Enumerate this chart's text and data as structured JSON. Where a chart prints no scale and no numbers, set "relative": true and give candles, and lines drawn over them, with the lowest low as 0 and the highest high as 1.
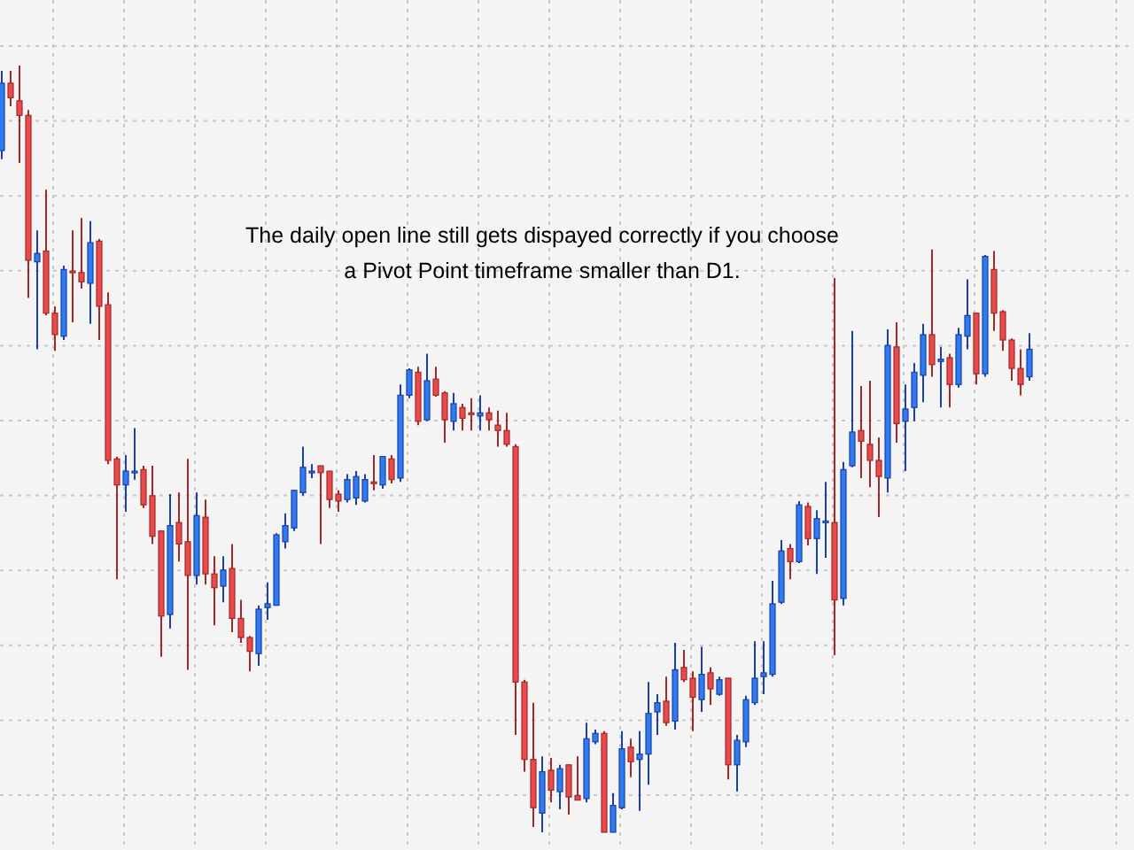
{
  "chart_data": {
    "type": "candlestick",
    "relative": true,
    "grid": true,
    "annotations": [
      "The daily open line still gets dispayed correctly if you choose\na Pivot Point timeframe smaller than D1."
    ],
    "categories": [
      null,
      null,
      null,
      null,
      null,
      null,
      null,
      null,
      null,
      null,
      null,
      null,
      null,
      null,
      null,
      null,
      null,
      null,
      null,
      null,
      null,
      null,
      null,
      null,
      null,
      null,
      null,
      null,
      null,
      null,
      null,
      null,
      null,
      null,
      null,
      null,
      null,
      null,
      null,
      null,
      null,
      null,
      null,
      null,
      null,
      null,
      null,
      null,
      null,
      null,
      null,
      null,
      null,
      null,
      null,
      null,
      null,
      null,
      null,
      null,
      null,
      null,
      null,
      null,
      null,
      null,
      null,
      null,
      null,
      null,
      null,
      null,
      null,
      null,
      null,
      null,
      null,
      null,
      null,
      null,
      null,
      null,
      null,
      null,
      null,
      null,
      null,
      null,
      null,
      null,
      null,
      null,
      null,
      null,
      null,
      null,
      null,
      null,
      null,
      null,
      null,
      null,
      null,
      null,
      null,
      null,
      null,
      null,
      null,
      null,
      null,
      null,
      null,
      null,
      null,
      null,
      null
    ],
    "ohlc": [
      [
        0.889,
        0.993,
        0.878,
        0.977
      ],
      [
        0.977,
        0.993,
        0.947,
        0.958
      ],
      [
        0.954,
        1,
        0.873,
        0.935
      ],
      [
        0.935,
        0.942,
        0.697,
        0.746
      ],
      [
        0.744,
        0.785,
        0.63,
        0.755
      ],
      [
        0.758,
        0.838,
        0.674,
        0.677
      ],
      [
        0.677,
        0.686,
        0.628,
        0.649
      ],
      [
        0.647,
        0.739,
        0.642,
        0.734
      ],
      [
        0.732,
        0.785,
        0.665,
        0.73
      ],
      [
        0.73,
        0.801,
        0.709,
        0.718
      ],
      [
        0.716,
        0.797,
        0.663,
        0.769
      ],
      [
        0.771,
        0.774,
        0.642,
        0.686
      ],
      [
        0.688,
        0.704,
        0.48,
        0.485
      ],
      [
        0.487,
        0.49,
        0.33,
        0.453
      ],
      [
        0.453,
        0.492,
        0.418,
        0.471
      ],
      [
        0.469,
        0.527,
        0.46,
        0.471
      ],
      [
        0.473,
        0.478,
        0.423,
        0.427
      ],
      [
        0.439,
        0.478,
        0.376,
        0.386
      ],
      [
        0.393,
        0.393,
        0.229,
        0.282
      ],
      [
        0.284,
        0.441,
        0.266,
        0.4
      ],
      [
        0.404,
        0.443,
        0.353,
        0.376
      ],
      [
        0.379,
        0.487,
        0.212,
        0.335
      ],
      [
        0.335,
        0.443,
        0.323,
        0.413
      ],
      [
        0.411,
        0.434,
        0.323,
        0.337
      ],
      [
        0.337,
        0.36,
        0.27,
        0.319
      ],
      [
        0.321,
        0.36,
        0.3,
        0.342
      ],
      [
        0.344,
        0.376,
        0.261,
        0.279
      ],
      [
        0.279,
        0.303,
        0.247,
        0.254
      ],
      [
        0.254,
        0.256,
        0.21,
        0.236
      ],
      [
        0.233,
        0.296,
        0.217,
        0.291
      ],
      [
        0.293,
        0.326,
        0.277,
        0.298
      ],
      [
        0.296,
        0.39,
        0.296,
        0.388
      ],
      [
        0.379,
        0.416,
        0.37,
        0.4
      ],
      [
        0.397,
        0.446,
        0.393,
        0.446
      ],
      [
        0.443,
        0.503,
        0.439,
        0.476
      ],
      [
        0.471,
        0.48,
        0.462,
        0.471
      ],
      [
        0.478,
        0.478,
        0.376,
        0.469
      ],
      [
        0.471,
        0.471,
        0.423,
        0.434
      ],
      [
        0.441,
        0.446,
        0.418,
        0.432
      ],
      [
        0.434,
        0.467,
        0.43,
        0.46
      ],
      [
        0.436,
        0.471,
        0.427,
        0.464
      ],
      [
        0.432,
        0.467,
        0.43,
        0.46
      ],
      [
        0.457,
        0.492,
        0.446,
        0.455
      ],
      [
        0.453,
        0.49,
        0.448,
        0.49
      ],
      [
        0.487,
        0.492,
        0.455,
        0.46
      ],
      [
        0.462,
        0.584,
        0.457,
        0.57
      ],
      [
        0.57,
        0.605,
        0.566,
        0.603
      ],
      [
        0.6,
        0.607,
        0.531,
        0.536
      ],
      [
        0.538,
        0.624,
        0.536,
        0.589
      ],
      [
        0.591,
        0.607,
        0.568,
        0.57
      ],
      [
        0.573,
        0.575,
        0.508,
        0.538
      ],
      [
        0.536,
        0.573,
        0.524,
        0.559
      ],
      [
        0.554,
        0.559,
        0.524,
        0.54
      ],
      [
        0.547,
        0.566,
        0.524,
        0.545
      ],
      [
        0.543,
        0.57,
        0.524,
        0.547
      ],
      [
        0.547,
        0.554,
        0.524,
        0.538
      ],
      [
        0.531,
        0.55,
        0.503,
        0.524
      ],
      [
        0.524,
        0.547,
        0.503,
        0.506
      ],
      [
        0.503,
        0.506,
        0.127,
        0.196
      ],
      [
        0.196,
        0.199,
        0.079,
        0.095
      ],
      [
        0.095,
        0.169,
        0.007,
        0.032
      ],
      [
        0.025,
        0.099,
        0,
        0.079
      ],
      [
        0.081,
        0.097,
        0.039,
        0.055
      ],
      [
        0.053,
        0.088,
        0.03,
        0.083
      ],
      [
        0.088,
        0.088,
        0.023,
        0.046
      ],
      [
        0.048,
        0.099,
        0.042,
        0.042
      ],
      [
        0.044,
        0.143,
        0.039,
        0.122
      ],
      [
        0.118,
        0.134,
        0.115,
        0.129
      ],
      [
        0.129,
        0.132,
        0,
        0
      ],
      [
        0,
        0.051,
        0,
        0.035
      ],
      [
        0.032,
        0.132,
        0.03,
        0.109
      ],
      [
        0.111,
        0.122,
        0.072,
        0.092
      ],
      [
        0.095,
        0.132,
        0.028,
        0.102
      ],
      [
        0.102,
        0.196,
        0.062,
        0.155
      ],
      [
        0.157,
        0.18,
        0.127,
        0.169
      ],
      [
        0.171,
        0.203,
        0.139,
        0.143
      ],
      [
        0.145,
        0.247,
        0.134,
        0.212
      ],
      [
        0.215,
        0.238,
        0.196,
        0.199
      ],
      [
        0.201,
        0.21,
        0.132,
        0.176
      ],
      [
        0.173,
        0.242,
        0.157,
        0.206
      ],
      [
        0.208,
        0.215,
        0.166,
        0.187
      ],
      [
        0.18,
        0.203,
        0.178,
        0.199
      ],
      [
        0.201,
        0.201,
        0.069,
        0.088
      ],
      [
        0.088,
        0.127,
        0.053,
        0.12
      ],
      [
        0.118,
        0.178,
        0.111,
        0.173
      ],
      [
        0.169,
        0.249,
        0.166,
        0.201
      ],
      [
        0.203,
        0.249,
        0.18,
        0.208
      ],
      [
        0.206,
        0.328,
        0.203,
        0.298
      ],
      [
        0.3,
        0.381,
        0.298,
        0.367
      ],
      [
        0.37,
        0.376,
        0.33,
        0.353
      ],
      [
        0.353,
        0.432,
        0.351,
        0.427
      ],
      [
        0.425,
        0.43,
        0.374,
        0.383
      ],
      [
        0.383,
        0.42,
        0.337,
        0.409
      ],
      [
        0.406,
        0.457,
        0.358,
        0.406
      ],
      [
        0.404,
        0.723,
        0.231,
        0.303
      ],
      [
        0.305,
        0.483,
        0.296,
        0.473
      ],
      [
        0.478,
        0.654,
        0.476,
        0.522
      ],
      [
        0.524,
        0.582,
        0.462,
        0.51
      ],
      [
        0.506,
        0.589,
        0.45,
        0.485
      ],
      [
        0.485,
        0.515,
        0.411,
        0.464
      ],
      [
        0.462,
        0.656,
        0.443,
        0.635
      ],
      [
        0.633,
        0.665,
        0.508,
        0.533
      ],
      [
        0.536,
        0.584,
        0.471,
        0.552
      ],
      [
        0.554,
        0.612,
        0.536,
        0.6
      ],
      [
        0.596,
        0.663,
        0.561,
        0.649
      ],
      [
        0.649,
        0.76,
        0.594,
        0.61
      ],
      [
        0.614,
        0.633,
        0.554,
        0.617
      ],
      [
        0.619,
        0.624,
        0.554,
        0.584
      ],
      [
        0.584,
        0.658,
        0.58,
        0.649
      ],
      [
        0.647,
        0.721,
        0.63,
        0.674
      ],
      [
        0.677,
        0.677,
        0.584,
        0.598
      ],
      [
        0.598,
        0.753,
        0.594,
        0.751
      ],
      [
        0.734,
        0.758,
        0.654,
        0.677
      ],
      [
        0.679,
        0.681,
        0.628,
        0.642
      ],
      [
        0.642,
        0.644,
        0.589,
        0.605
      ],
      [
        0.605,
        0.63,
        0.57,
        0.584
      ],
      [
        0.594,
        0.651,
        0.589,
        0.63
      ]
    ]
  }
}
